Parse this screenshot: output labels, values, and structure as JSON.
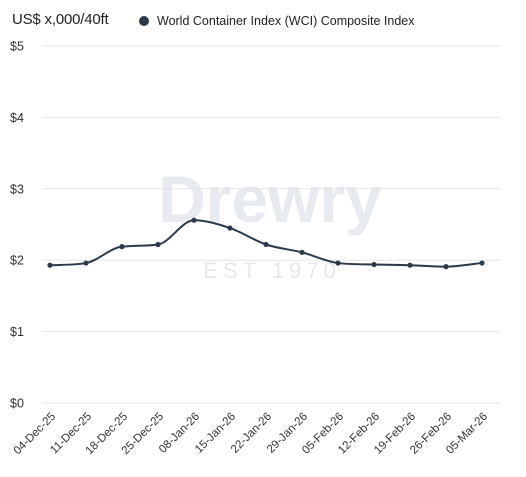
{
  "chart_data": {
    "type": "line",
    "unit_label": "US$ x,000/40ft",
    "x": [
      "04-Dec-25",
      "11-Dec-25",
      "18-Dec-25",
      "25-Dec-25",
      "08-Jan-26",
      "15-Jan-26",
      "22-Jan-26",
      "29-Jan-26",
      "05-Feb-26",
      "12-Feb-26",
      "19-Feb-26",
      "26-Feb-26",
      "05-Mar-26"
    ],
    "series": [
      {
        "name": "World Container Index (WCI) Composite Index",
        "values": [
          1.93,
          1.96,
          2.19,
          2.22,
          2.56,
          2.45,
          2.22,
          2.11,
          1.96,
          1.94,
          1.93,
          1.91,
          1.96
        ],
        "color": "#2b3a4a"
      }
    ],
    "y_ticks": [
      "$0",
      "$1",
      "$2",
      "$3",
      "$4",
      "$5"
    ],
    "ylim": [
      0,
      5
    ],
    "grid": true,
    "legend_position": "top"
  },
  "watermark": {
    "brand": "Drewry",
    "tagline": "EST 1970"
  },
  "colors": {
    "gridline": "#e6e6e6",
    "axis_text": "#333333",
    "watermark": "#dfe3ea"
  }
}
